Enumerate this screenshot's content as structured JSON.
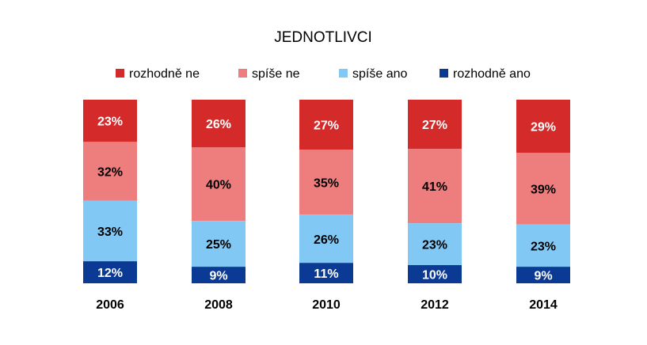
{
  "chart_data": {
    "type": "bar",
    "stacked": true,
    "orientation": "vertical",
    "normalized_percent": true,
    "title": "JEDNOTLIVCI",
    "categories": [
      "2006",
      "2008",
      "2010",
      "2012",
      "2014"
    ],
    "series": [
      {
        "name": "rozhodně ne",
        "color": "#d42a2a",
        "values": [
          23,
          26,
          27,
          27,
          29
        ],
        "labels": [
          "23%",
          "26%",
          "27%",
          "27%",
          "29%"
        ]
      },
      {
        "name": "spíše ne",
        "color": "#ee7d7d",
        "values": [
          32,
          40,
          35,
          41,
          39
        ],
        "labels": [
          "32%",
          "40%",
          "35%",
          "41%",
          "39%"
        ]
      },
      {
        "name": "spíše ano",
        "color": "#82c8f5",
        "values": [
          33,
          25,
          26,
          23,
          23
        ],
        "labels": [
          "33%",
          "25%",
          "26%",
          "23%",
          "23%"
        ]
      },
      {
        "name": "rozhodně ano",
        "color": "#0b3a94",
        "values": [
          12,
          9,
          11,
          10,
          9
        ],
        "labels": [
          "12%",
          "9%",
          "11%",
          "10%",
          "9%"
        ]
      }
    ],
    "stack_order_top_to_bottom": [
      "rozhodně ne",
      "spíše ne",
      "spíše ano",
      "rozhodně ano"
    ],
    "legend_position": "top",
    "grid": false,
    "ylim": [
      0,
      100
    ]
  }
}
